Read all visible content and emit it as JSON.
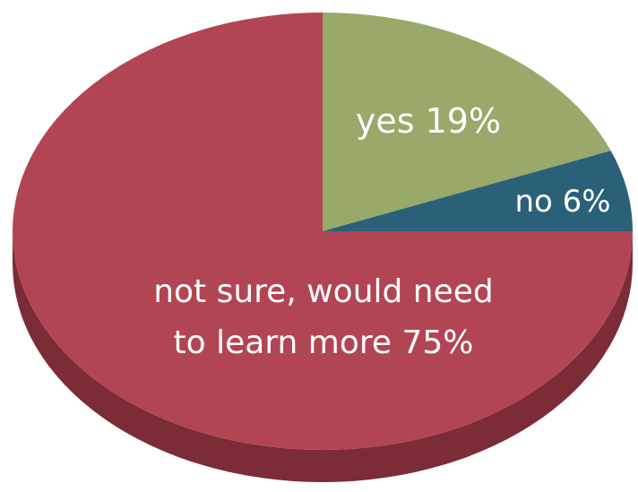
{
  "chart_data": {
    "type": "pie",
    "title": "",
    "slices": [
      {
        "label": "yes",
        "value": 19,
        "display": "yes 19%",
        "color": "#98a96a"
      },
      {
        "label": "no",
        "value": 6,
        "display": "no 6%",
        "color": "#2a6179"
      },
      {
        "label": "not sure, would need to learn more",
        "value": 75,
        "display_lines": [
          "not sure, would need",
          "to learn more 75%"
        ],
        "color": "#b24554"
      }
    ],
    "style": "3d",
    "side_color": "#7b2c36",
    "label_color": "#ffffff",
    "legend": "none"
  }
}
